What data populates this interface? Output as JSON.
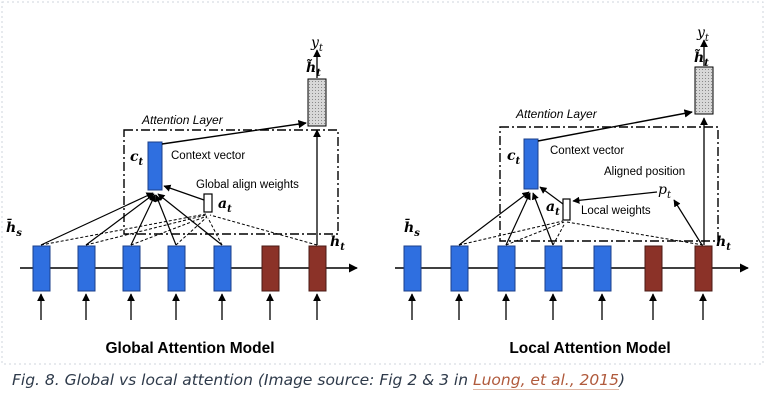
{
  "figure": {
    "panels": [
      {
        "id": "global",
        "title": "Global Attention Model",
        "attention_layer": "Attention Layer",
        "context_vector": "Context vector",
        "weights_label": "Global align weights",
        "sym_y": "y",
        "sym_sub_t": "t",
        "sym_htilde": "h̃",
        "sym_hbar": "h̄",
        "sym_sub_s": "s",
        "sym_c": "c",
        "sym_a": "a",
        "sym_h": "h"
      },
      {
        "id": "local",
        "title": "Local Attention Model",
        "attention_layer": "Attention Layer",
        "context_vector": "Context vector",
        "aligned_position": "Aligned position",
        "weights_label": "Local weights",
        "sym_y": "y",
        "sym_sub_t": "t",
        "sym_htilde": "h̃",
        "sym_hbar": "h̄",
        "sym_sub_s": "s",
        "sym_c": "c",
        "sym_a": "a",
        "sym_h": "h",
        "sym_p": "p"
      }
    ],
    "colors": {
      "encoder_blue": "#2f6fe0",
      "decoder_red": "#8b3228",
      "output_gray": "#c4c4c4",
      "link_brown": "#b05a3c"
    }
  },
  "caption": {
    "prefix": "Fig. 8. Global vs local attention (Image source: Fig 2 & 3 in ",
    "link_text": "Luong, et al., 2015",
    "suffix": ")"
  }
}
